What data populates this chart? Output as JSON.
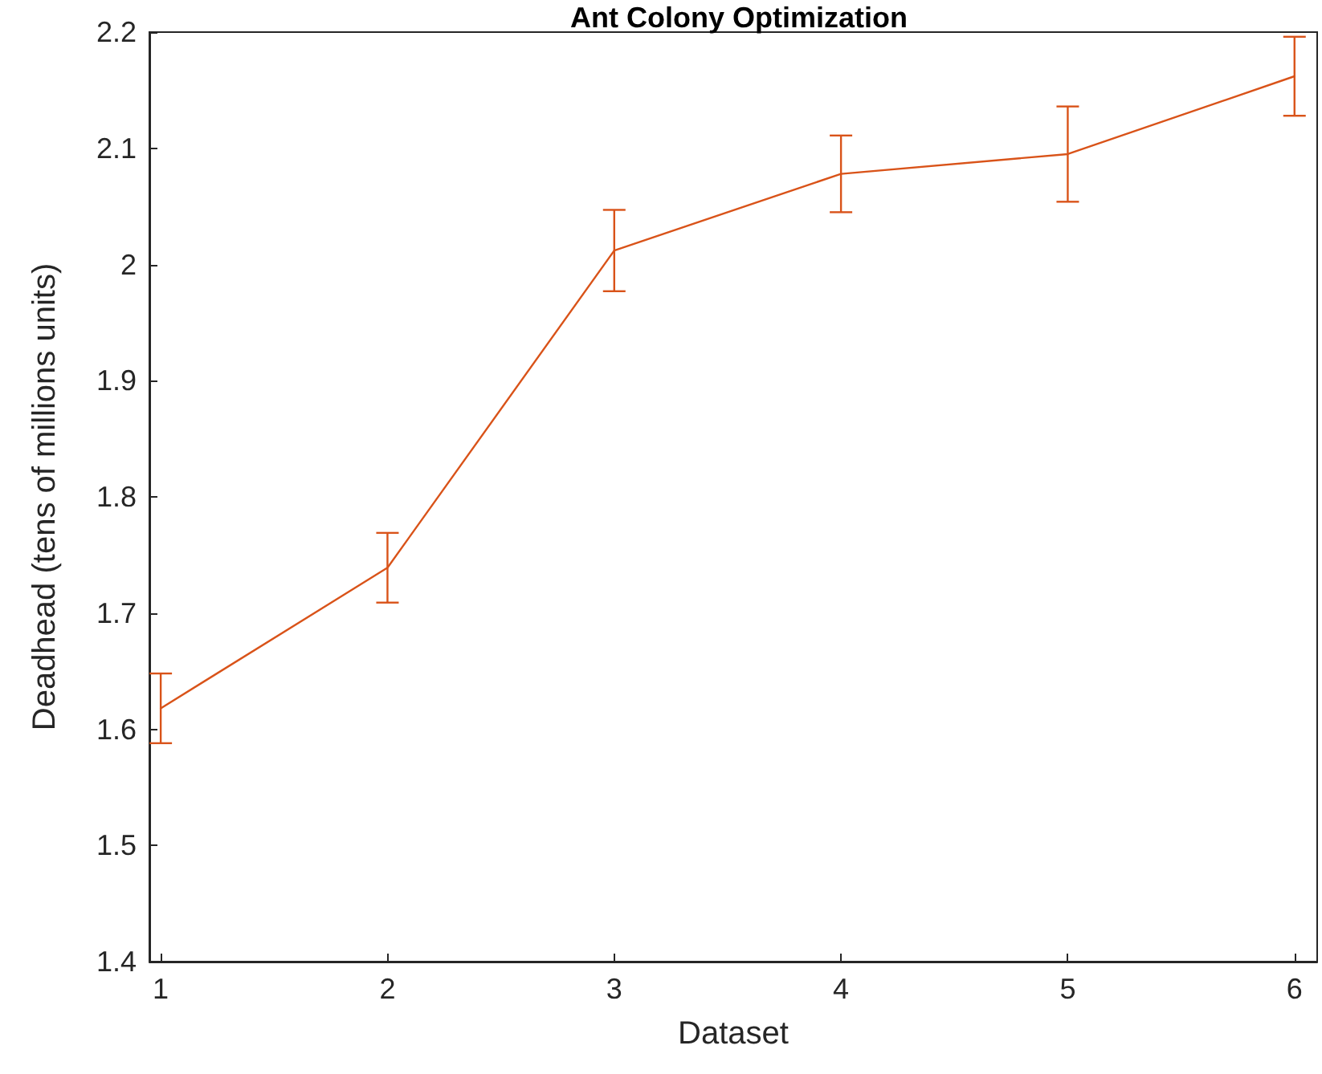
{
  "chart_data": {
    "type": "line",
    "title": "Ant Colony Optimization",
    "xlabel": "Dataset",
    "ylabel": "Deadhead (tens of millions units)",
    "x": [
      1,
      2,
      3,
      4,
      5,
      6
    ],
    "series": [
      {
        "color": "#d95319",
        "values": [
          1.618,
          1.739,
          2.012,
          2.078,
          2.095,
          2.162
        ],
        "errors": [
          0.03,
          0.03,
          0.035,
          0.033,
          0.041,
          0.034
        ]
      }
    ],
    "xlim": [
      0.95,
      6.1
    ],
    "xticks": [
      1,
      2,
      3,
      4,
      5,
      6
    ],
    "ylim": [
      1.4,
      2.2
    ],
    "yticks": [
      1.4,
      1.5,
      1.6,
      1.7,
      1.8,
      1.9,
      2,
      2.1,
      2.2
    ],
    "grid": false,
    "marker": "none",
    "line_style": "solid"
  }
}
